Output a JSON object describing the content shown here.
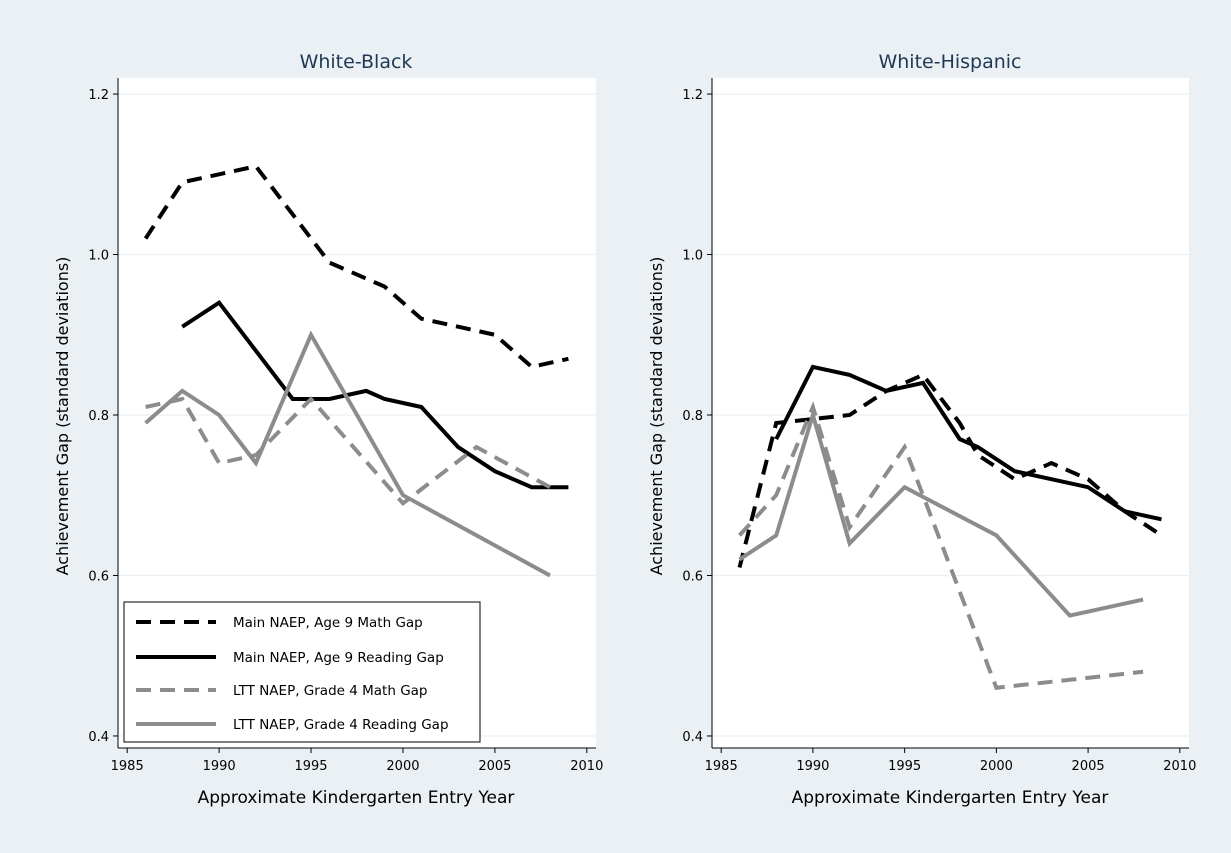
{
  "colors": {
    "background": "#eaf0f3",
    "plot_bg": "#ffffff",
    "grid": "#eaf0f3",
    "title": "#1e3855",
    "axis": "#000000",
    "main_series": "#000000",
    "ltt_series": "#8c8c8c"
  },
  "shared": {
    "xlabel": "Approximate Kindergarten Entry Year",
    "ylabel": "Achievement Gap (standard deviations)",
    "xticks": [
      1985,
      1990,
      1995,
      2000,
      2005,
      2010
    ],
    "yticks": [
      0.4,
      0.6,
      0.8,
      1.0,
      1.2
    ],
    "ytick_labels": [
      "0.4",
      "0.6",
      "0.8",
      "1.0",
      "1.2"
    ],
    "xlim": [
      1984.5,
      2010.5
    ],
    "ylim": [
      0.385,
      1.22
    ]
  },
  "legend": {
    "placement": "bottom-left of left panel",
    "entries": [
      {
        "label": "Main NAEP, Age 9 Math Gap",
        "style": "dashed",
        "color": "#000000"
      },
      {
        "label": "Main NAEP, Age 9 Reading Gap",
        "style": "solid",
        "color": "#000000"
      },
      {
        "label": "LTT NAEP, Grade 4 Math Gap",
        "style": "dashed",
        "color": "#8c8c8c"
      },
      {
        "label": "LTT NAEP, Grade 4 Reading Gap",
        "style": "solid",
        "color": "#8c8c8c"
      }
    ]
  },
  "chart_data": [
    {
      "type": "line",
      "title": "White-Black",
      "xlabel": "Approximate Kindergarten Entry Year",
      "ylabel": "Achievement Gap (standard deviations)",
      "xlim": [
        1984.5,
        2010.5
      ],
      "ylim": [
        0.385,
        1.22
      ],
      "grid": true,
      "series": [
        {
          "name": "Main NAEP, Age 9 Math Gap",
          "style": "dashed",
          "color": "#000000",
          "x": [
            1986,
            1988,
            1990,
            1992,
            1994,
            1996,
            1998,
            1999,
            2001,
            2003,
            2005,
            2007,
            2009
          ],
          "y": [
            1.02,
            1.09,
            1.1,
            1.11,
            1.05,
            0.99,
            0.97,
            0.96,
            0.92,
            0.91,
            0.9,
            0.86,
            0.87
          ]
        },
        {
          "name": "Main NAEP, Age 9 Reading Gap",
          "style": "solid",
          "color": "#000000",
          "x": [
            1988,
            1990,
            1992,
            1994,
            1996,
            1998,
            1999,
            2001,
            2003,
            2005,
            2007,
            2009
          ],
          "y": [
            0.91,
            0.94,
            0.88,
            0.82,
            0.82,
            0.83,
            0.82,
            0.81,
            0.76,
            0.73,
            0.71,
            0.71
          ]
        },
        {
          "name": "LTT NAEP, Grade 4 Math Gap",
          "style": "dashed",
          "color": "#8c8c8c",
          "x": [
            1986,
            1988,
            1990,
            1992,
            1995,
            2000,
            2004,
            2008
          ],
          "y": [
            0.81,
            0.82,
            0.74,
            0.75,
            0.82,
            0.69,
            0.76,
            0.71
          ]
        },
        {
          "name": "LTT NAEP, Grade 4 Reading Gap",
          "style": "solid",
          "color": "#8c8c8c",
          "x": [
            1986,
            1988,
            1990,
            1992,
            1995,
            2000,
            2004,
            2008
          ],
          "y": [
            0.79,
            0.83,
            0.8,
            0.74,
            0.9,
            0.7,
            0.65,
            0.6
          ]
        }
      ]
    },
    {
      "type": "line",
      "title": "White-Hispanic",
      "xlabel": "Approximate Kindergarten Entry Year",
      "ylabel": "Achievement Gap (standard deviations)",
      "xlim": [
        1984.5,
        2010.5
      ],
      "ylim": [
        0.385,
        1.22
      ],
      "grid": true,
      "series": [
        {
          "name": "Main NAEP, Age 9 Math Gap",
          "style": "dashed",
          "color": "#000000",
          "x": [
            1986,
            1988,
            1990,
            1992,
            1994,
            1996,
            1998,
            1999,
            2001,
            2003,
            2005,
            2007,
            2009
          ],
          "y": [
            0.61,
            0.79,
            0.795,
            0.8,
            0.83,
            0.85,
            0.79,
            0.75,
            0.72,
            0.74,
            0.72,
            0.68,
            0.65
          ]
        },
        {
          "name": "Main NAEP, Age 9 Reading Gap",
          "style": "solid",
          "color": "#000000",
          "x": [
            1988,
            1990,
            1992,
            1994,
            1996,
            1998,
            1999,
            2001,
            2003,
            2005,
            2007,
            2009
          ],
          "y": [
            0.77,
            0.86,
            0.85,
            0.83,
            0.84,
            0.77,
            0.76,
            0.73,
            0.72,
            0.71,
            0.68,
            0.67
          ]
        },
        {
          "name": "LTT NAEP, Grade 4 Math Gap",
          "style": "dashed",
          "color": "#8c8c8c",
          "x": [
            1986,
            1988,
            1990,
            1992,
            1995,
            2000,
            2004,
            2008
          ],
          "y": [
            0.65,
            0.7,
            0.81,
            0.66,
            0.76,
            0.46,
            0.47,
            0.48
          ]
        },
        {
          "name": "LTT NAEP, Grade 4 Reading Gap",
          "style": "solid",
          "color": "#8c8c8c",
          "x": [
            1986,
            1988,
            1990,
            1992,
            1995,
            2000,
            2004,
            2008
          ],
          "y": [
            0.62,
            0.65,
            0.8,
            0.64,
            0.71,
            0.65,
            0.55,
            0.57
          ]
        }
      ]
    }
  ]
}
